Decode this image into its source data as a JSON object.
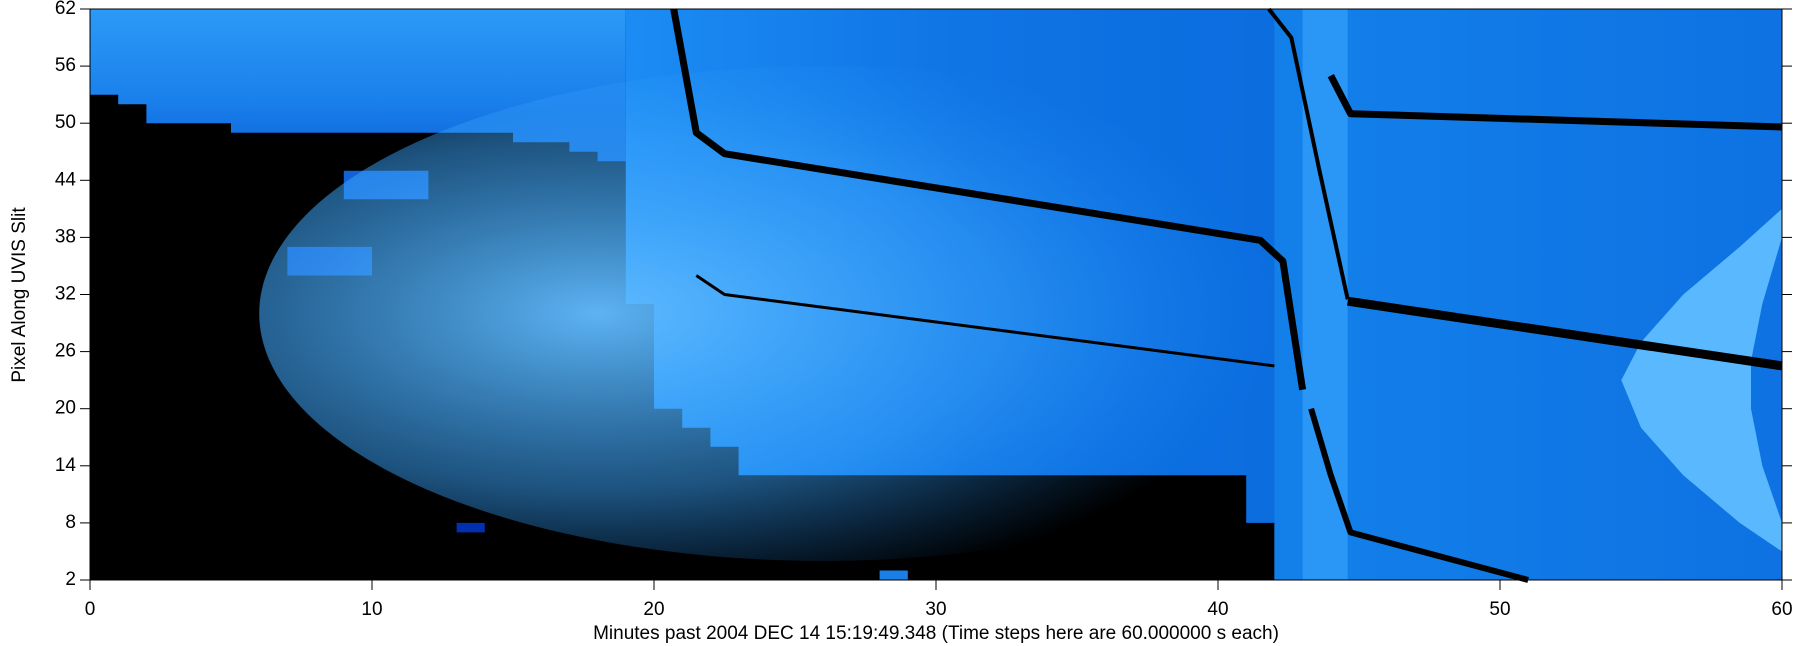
{
  "chart_data": {
    "type": "image",
    "x_label": "Minutes past 2004 DEC 14 15:19:49.348 (Time steps here are 60.000000 s each)",
    "y_label": "Pixel Along UVIS Slit",
    "xlim": [
      0,
      60
    ],
    "xticks": [
      0,
      10,
      20,
      30,
      40,
      50,
      60
    ],
    "ylim": [
      2,
      62
    ],
    "yticks": [
      2,
      8,
      14,
      20,
      26,
      32,
      38,
      44,
      50,
      56,
      62
    ]
  }
}
